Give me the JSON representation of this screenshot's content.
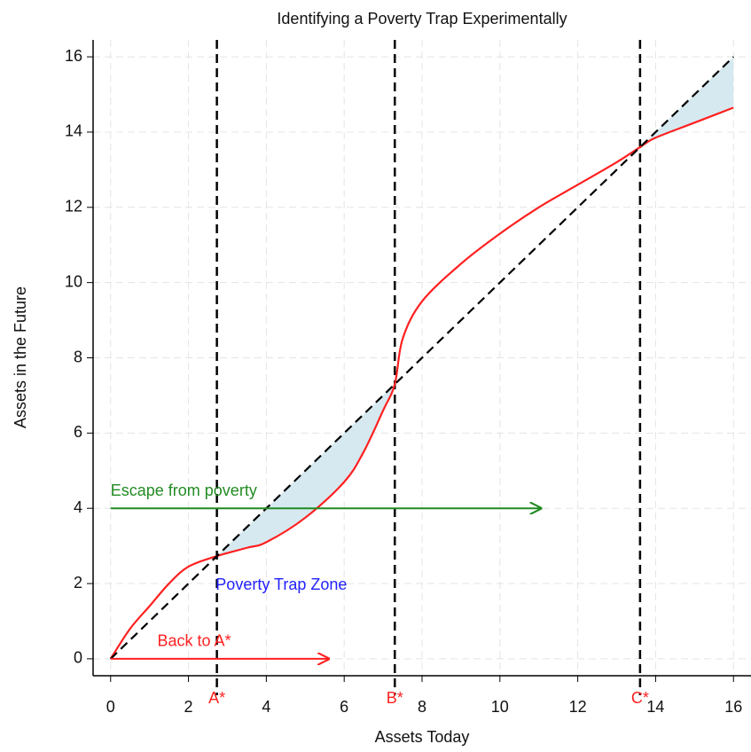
{
  "chart_data": {
    "type": "line",
    "title": "Identifying a Poverty Trap Experimentally",
    "xlabel": "Assets Today",
    "ylabel": "Assets in the Future",
    "xlim": [
      -0.45,
      16.45
    ],
    "ylim": [
      -0.45,
      16.45
    ],
    "xticks": [
      0,
      2,
      4,
      6,
      8,
      10,
      12,
      14,
      16
    ],
    "yticks": [
      0,
      2,
      4,
      6,
      8,
      10,
      12,
      14,
      16
    ],
    "grid": true,
    "series": [
      {
        "color": "#ff2020",
        "style": "solid",
        "x": [
          0,
          0.5,
          1,
          1.5,
          2,
          2.73,
          3.5,
          4,
          5,
          6,
          6.5,
          7,
          7.3,
          7.5,
          8,
          9,
          10,
          11,
          12,
          13,
          13.6,
          14,
          15,
          16
        ],
        "values": [
          0,
          0.8,
          1.4,
          2.0,
          2.45,
          2.73,
          2.95,
          3.1,
          3.75,
          4.7,
          5.5,
          6.6,
          7.3,
          8.5,
          9.5,
          10.5,
          11.3,
          12.0,
          12.6,
          13.2,
          13.6,
          13.85,
          14.25,
          14.65
        ]
      },
      {
        "color": "#000000",
        "style": "dashed",
        "x": [
          0,
          16
        ],
        "values": [
          0,
          16
        ]
      }
    ],
    "shade_color": "#d6e9f0",
    "vlines": [
      {
        "x": 2.73,
        "label": "A*"
      },
      {
        "x": 7.3,
        "label": "B*"
      },
      {
        "x": 13.6,
        "label": "C*"
      }
    ],
    "vline_label_color": "#ff2020",
    "arrows": [
      {
        "x": [
          0,
          11.05
        ],
        "y": 4,
        "color": "#228b22",
        "label": "Escape from poverty",
        "label_x": 0,
        "label_y": 4.45
      },
      {
        "x": [
          0,
          5.6
        ],
        "y": 0,
        "color": "#ff2020",
        "label": "Back to A*",
        "label_x": 1.2,
        "label_y": 0.45
      }
    ],
    "annotations": [
      {
        "text": "Poverty Trap Zone",
        "x": 2.7,
        "y": 1.95,
        "color": "#2222ff"
      }
    ]
  }
}
